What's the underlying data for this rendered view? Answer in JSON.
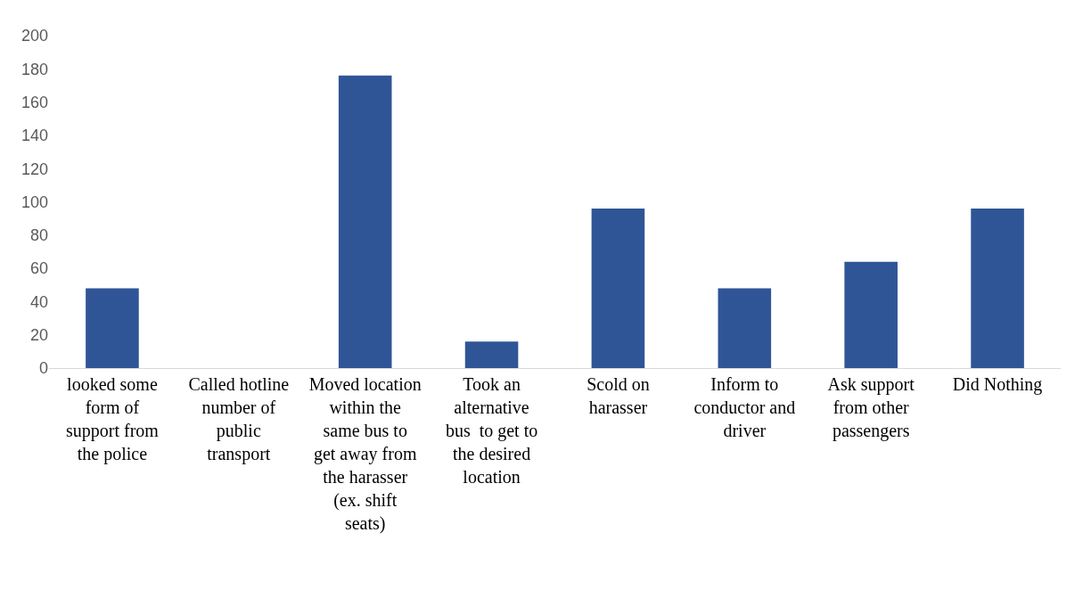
{
  "chart_data": {
    "type": "bar",
    "categories": [
      "looked some form of support from the police",
      "Called hotline number of public transport",
      "Moved location within the same bus to get away from the harasser (ex. shift seats)",
      "Took an alternative bus  to get to the desired location",
      "Scold on harasser",
      "Inform to conductor and driver",
      "Ask support from other passengers",
      "Did Nothing"
    ],
    "values": [
      48,
      0,
      176,
      16,
      96,
      48,
      64,
      96
    ],
    "color": "#2f5597",
    "ylim": [
      0,
      200
    ],
    "yticks": [
      0,
      20,
      40,
      60,
      80,
      100,
      120,
      140,
      160,
      180,
      200
    ],
    "grid": false
  }
}
